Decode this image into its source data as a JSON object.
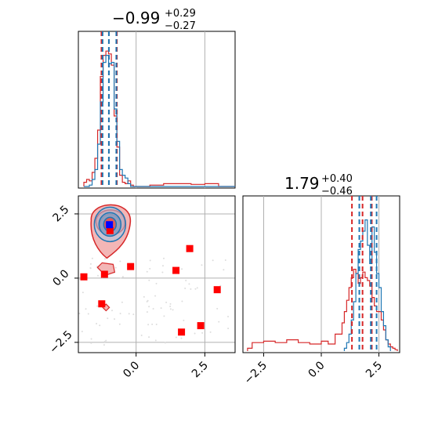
{
  "chart_data": [
    {
      "type": "histogram",
      "panel": "top-left",
      "title": {
        "value": "−0.99",
        "upper": "+0.29",
        "lower": "−0.27"
      },
      "xlim": [
        -2.1,
        3.6
      ],
      "grid": true,
      "series": [
        {
          "color": "#d62728",
          "bins": [
            -1.9,
            -1.8,
            -1.7,
            -1.6,
            -1.5,
            -1.4,
            -1.3,
            -1.2,
            -1.1,
            -1.0,
            -0.9,
            -0.8,
            -0.7,
            -0.6,
            -0.5,
            -0.4,
            -0.3,
            -0.2,
            -0.1,
            0.0,
            0.5,
            1.0,
            1.5,
            2.0,
            2.5,
            3.0,
            3.5
          ],
          "heights": [
            0.03,
            0.05,
            0.04,
            0.1,
            0.2,
            0.4,
            0.78,
            0.93,
            0.96,
            0.94,
            0.86,
            0.5,
            0.28,
            0.08,
            0.03,
            0.02,
            0.04,
            0.01,
            0,
            0,
            0.01,
            0.02,
            0.02,
            0.015,
            0.02,
            0,
            0
          ]
        },
        {
          "color": "#1f77b4",
          "bins": [
            -1.9,
            -1.8,
            -1.7,
            -1.6,
            -1.5,
            -1.4,
            -1.3,
            -1.2,
            -1.1,
            -1.0,
            -0.9,
            -0.8,
            -0.7,
            -0.6,
            -0.5,
            -0.4,
            -0.3,
            -0.2,
            -0.1,
            0.0,
            0.5,
            1.0,
            1.5,
            2.0,
            2.5,
            3.0,
            3.5
          ],
          "heights": [
            0,
            0,
            0.01,
            0.05,
            0.12,
            0.3,
            0.6,
            0.88,
            0.93,
            0.87,
            0.88,
            0.55,
            0.32,
            0.12,
            0.08,
            0.06,
            0.02,
            0,
            0,
            0,
            0,
            0,
            0,
            0,
            0,
            0,
            0
          ]
        }
      ],
      "quantile_lines": [
        {
          "color": "#d62728",
          "x": [
            -1.26,
            -0.99,
            -0.7
          ]
        },
        {
          "color": "#1f77b4",
          "x": [
            -1.22,
            -0.99,
            -0.72
          ]
        }
      ]
    },
    {
      "type": "histogram",
      "panel": "bottom-right",
      "title": {
        "value": "1.79",
        "upper": "+0.40",
        "lower": "−0.46"
      },
      "xlim": [
        -3.4,
        3.4
      ],
      "xticks": [
        "−2.5",
        "0.0",
        "2.5"
      ],
      "xtick_values": [
        -2.5,
        0,
        2.5
      ],
      "grid": true,
      "series": [
        {
          "color": "#d62728",
          "bins": [
            -3.2,
            -3.0,
            -2.5,
            -2.0,
            -1.5,
            -1.0,
            -0.5,
            0.0,
            0.3,
            0.6,
            0.9,
            1.0,
            1.1,
            1.2,
            1.3,
            1.4,
            1.5,
            1.6,
            1.7,
            1.8,
            1.9,
            2.0,
            2.1,
            2.2,
            2.3,
            2.4,
            2.5,
            2.6,
            2.7,
            2.8,
            2.9,
            3.0,
            3.1,
            3.2
          ],
          "heights": [
            0.02,
            0.06,
            0.07,
            0.06,
            0.08,
            0.06,
            0.05,
            0.07,
            0.05,
            0.12,
            0.2,
            0.28,
            0.36,
            0.45,
            0.52,
            0.58,
            0.55,
            0.48,
            0.52,
            0.56,
            0.52,
            0.5,
            0.46,
            0.38,
            0.32,
            0.28,
            0.28,
            0.22,
            0.15,
            0.08,
            0.05,
            0.03,
            0.02,
            0.01
          ]
        },
        {
          "color": "#1f77b4",
          "bins": [
            1.0,
            1.1,
            1.2,
            1.3,
            1.4,
            1.5,
            1.6,
            1.7,
            1.8,
            1.9,
            2.0,
            2.1,
            2.2,
            2.3,
            2.4,
            2.5,
            2.6,
            2.7,
            2.8,
            2.9
          ],
          "heights": [
            0.02,
            0.06,
            0.12,
            0.22,
            0.35,
            0.55,
            0.72,
            0.78,
            0.85,
            0.93,
            0.75,
            0.62,
            0.88,
            0.7,
            0.55,
            0.45,
            0.28,
            0.18,
            0.08,
            0.03
          ]
        }
      ],
      "quantile_lines": [
        {
          "color": "#d62728",
          "x": [
            1.33,
            1.79,
            2.19
          ]
        },
        {
          "color": "#1f77b4",
          "x": [
            1.65,
            2.15,
            2.4
          ]
        }
      ]
    },
    {
      "type": "scatter-contour",
      "panel": "bottom-left",
      "xlim": [
        -2.1,
        3.6
      ],
      "ylim": [
        -2.9,
        3.2
      ],
      "xticks": [
        "0.0",
        "2.5"
      ],
      "xtick_values": [
        0,
        2.5
      ],
      "yticks": [
        "2.5",
        "0.0",
        "−2.5"
      ],
      "ytick_values": [
        2.5,
        0,
        -2.5
      ],
      "grid": true,
      "contour_center": [
        -0.95,
        2.0
      ],
      "red_points": [
        {
          "x": -1.9,
          "y": 0.05
        },
        {
          "x": -1.15,
          "y": 0.15
        },
        {
          "x": -1.25,
          "y": -1.0
        },
        {
          "x": -0.2,
          "y": 0.45
        },
        {
          "x": 1.45,
          "y": 0.3
        },
        {
          "x": 1.95,
          "y": 1.15
        },
        {
          "x": 2.95,
          "y": -0.45
        },
        {
          "x": 2.35,
          "y": -1.85
        },
        {
          "x": 1.65,
          "y": -2.1
        },
        {
          "x": -0.95,
          "y": 1.85
        }
      ],
      "blue_point": {
        "x": -0.97,
        "y": 2.08
      }
    }
  ]
}
